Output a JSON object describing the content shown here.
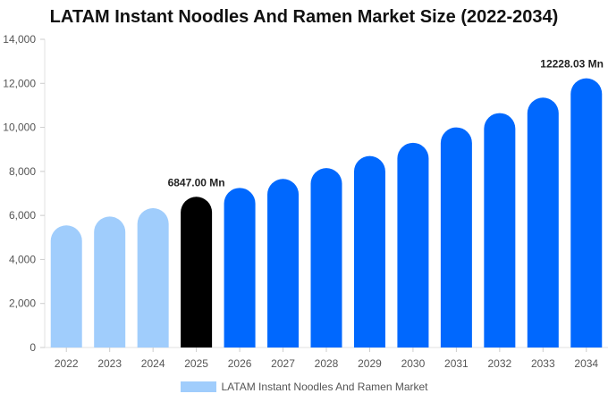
{
  "chart_data": {
    "type": "bar",
    "title": "LATAM Instant Noodles And Ramen Market Size (2022-2034)",
    "xlabel": "",
    "ylabel": "",
    "categories": [
      "2022",
      "2023",
      "2024",
      "2025",
      "2026",
      "2027",
      "2028",
      "2029",
      "2030",
      "2031",
      "2032",
      "2033",
      "2034"
    ],
    "series": [
      {
        "name": "LATAM Instant Noodles And Ramen Market",
        "values": [
          5550,
          5950,
          6330,
          6847,
          7250,
          7660,
          8150,
          8700,
          9300,
          10000,
          10650,
          11350,
          12228.03
        ]
      }
    ],
    "ylim": [
      0,
      14000
    ],
    "yticks": [
      "0",
      "2,000",
      "4,000",
      "6,000",
      "8,000",
      "10,000",
      "12,000",
      "14,000"
    ],
    "ytick_values": [
      0,
      2000,
      4000,
      6000,
      8000,
      10000,
      12000,
      14000
    ],
    "annotations": [
      {
        "index": 3,
        "text": "6847.00 Mn"
      },
      {
        "index": 12,
        "text": "12228.03 Mn"
      }
    ],
    "bar_colors": [
      "#a0cdfc",
      "#a0cdfc",
      "#a0cdfc",
      "#000000",
      "#0068fe",
      "#0068fe",
      "#0068fe",
      "#0068fe",
      "#0068fe",
      "#0068fe",
      "#0068fe",
      "#0068fe",
      "#0068fe"
    ],
    "legend_color": "#a0cdfc",
    "legend_position": "bottom",
    "grid": false
  }
}
